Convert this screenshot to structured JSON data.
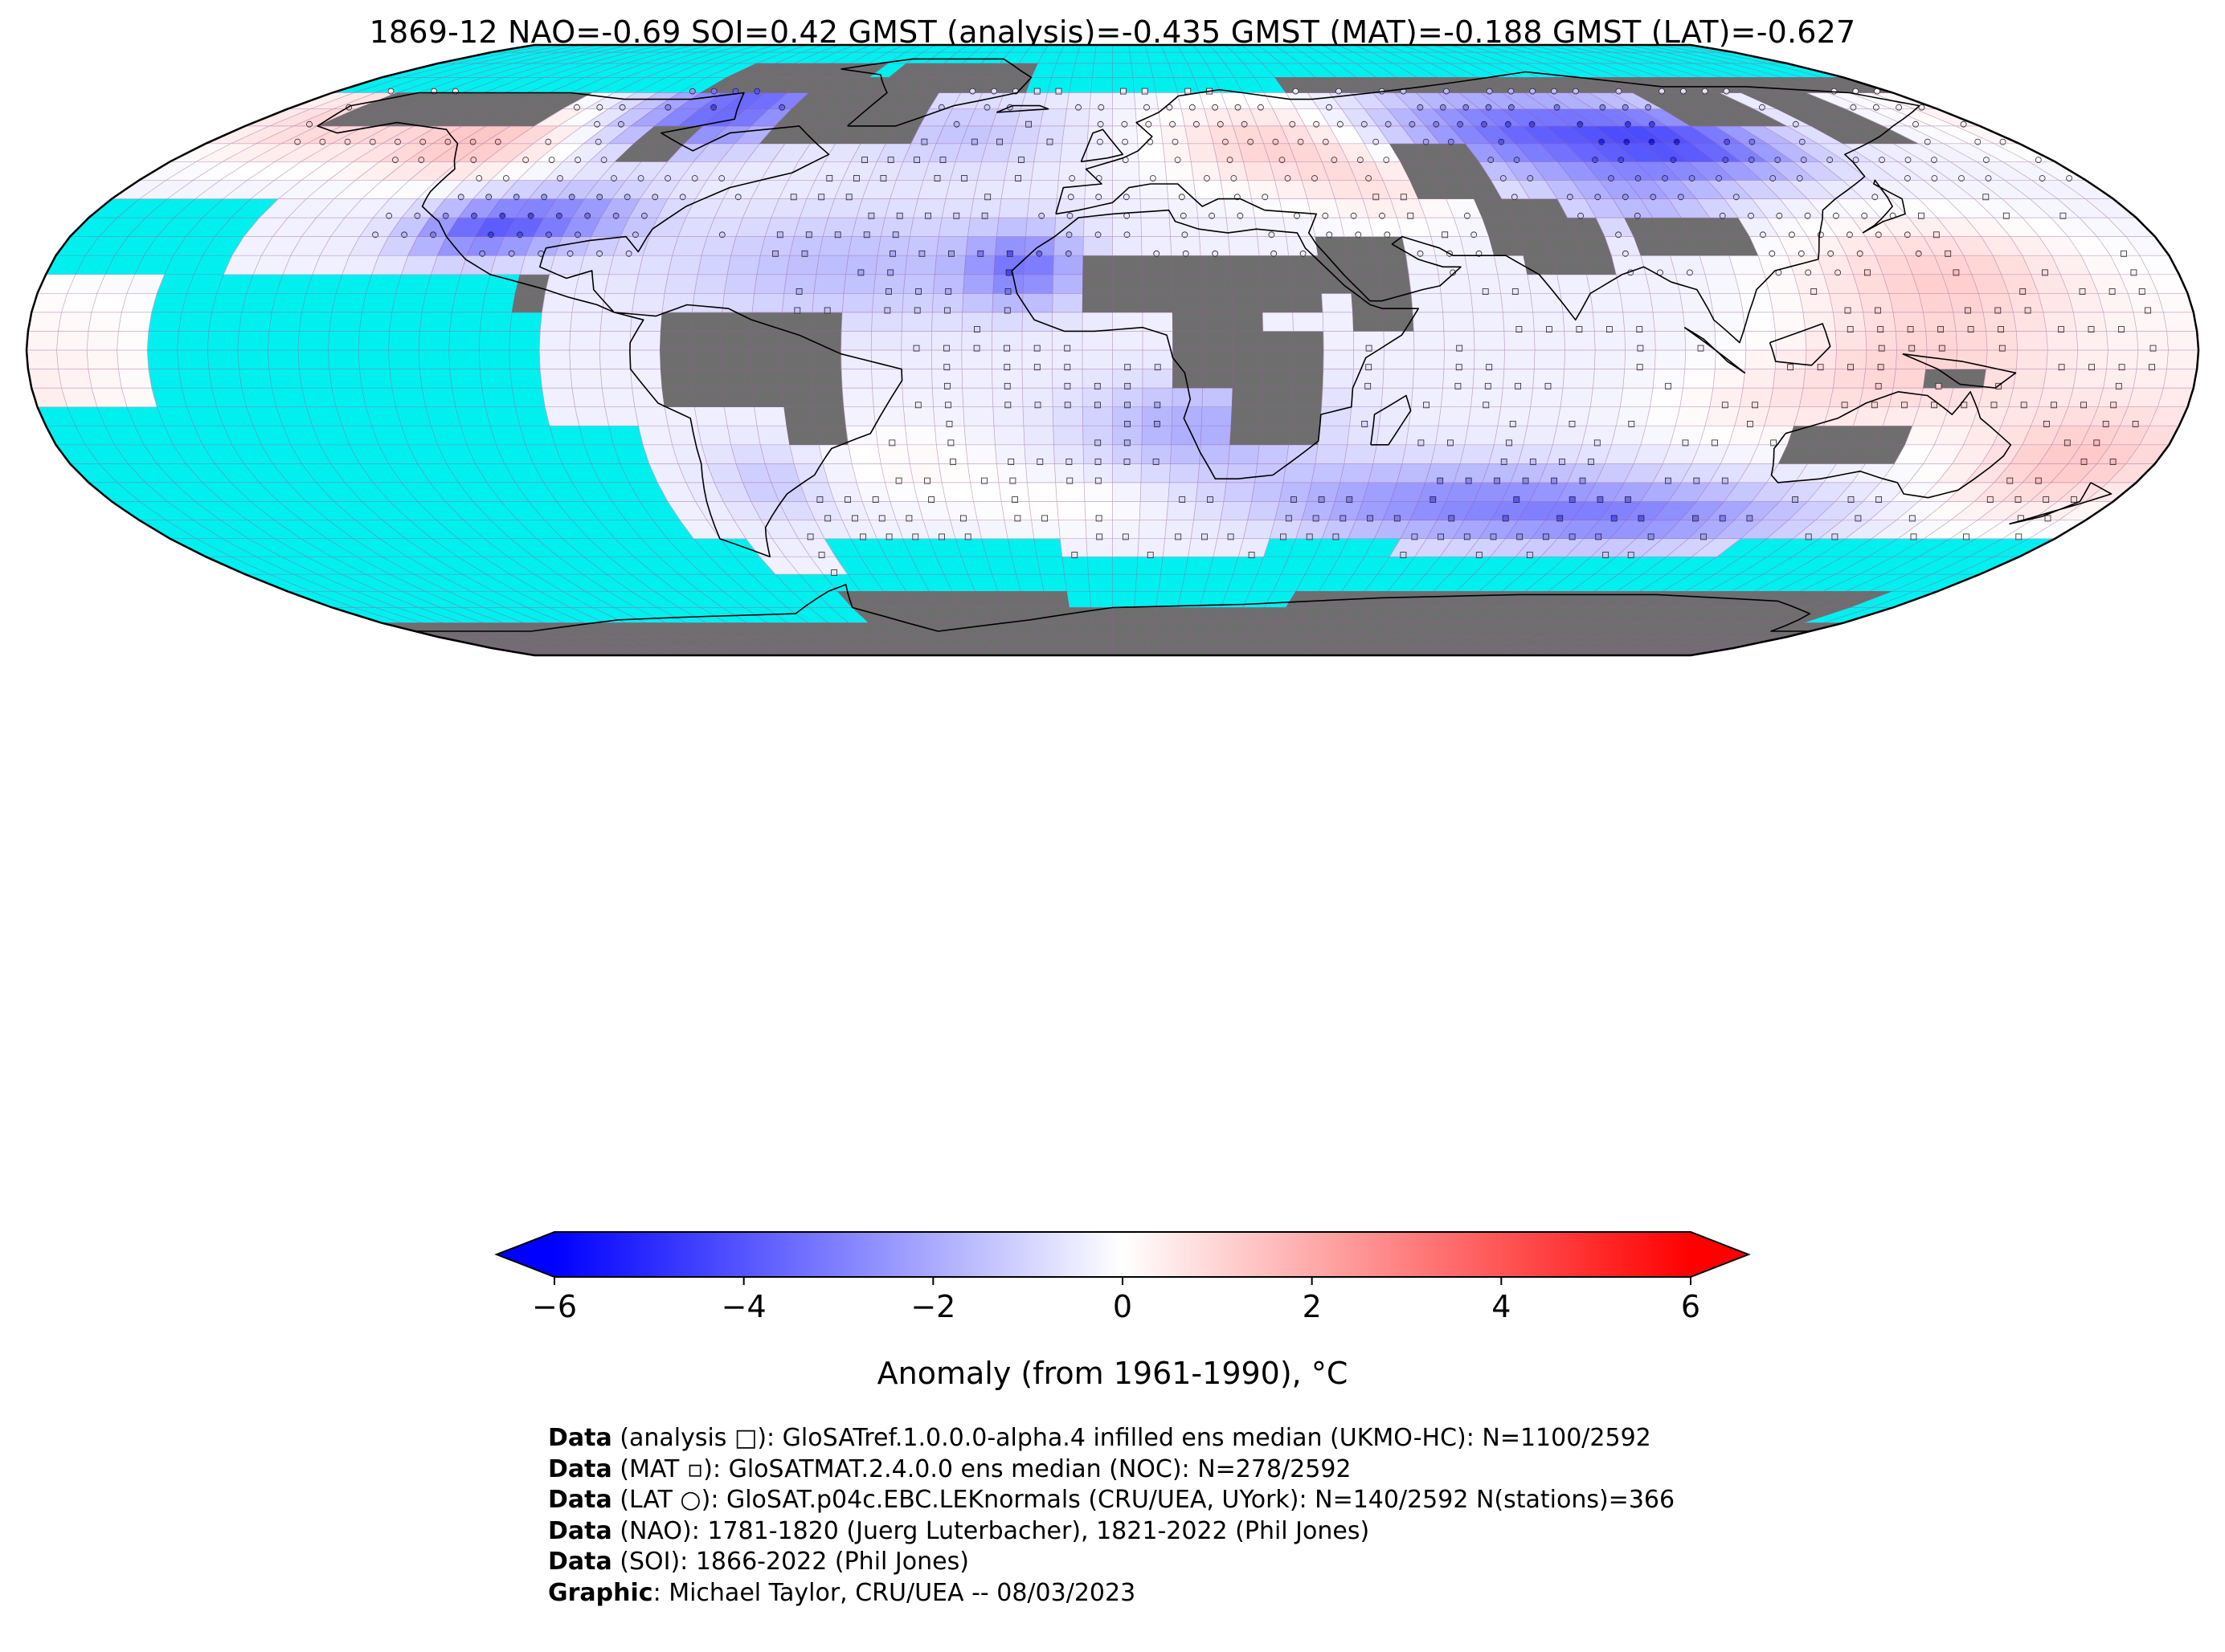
{
  "title": "1869-12 NAO=-0.69 SOI=0.42 GMST (analysis)=-0.435 GMST (MAT)=-0.188 GMST (LAT)=-0.627",
  "colorbar": {
    "label": "Anomaly (from 1961-1990), °C",
    "min": -6,
    "max": 6,
    "ticks": [
      "−6",
      "−4",
      "−2",
      "0",
      "2",
      "4",
      "6"
    ],
    "tick_values": [
      -6,
      -4,
      -2,
      0,
      2,
      4,
      6
    ],
    "extend": "both",
    "colormap": [
      "#0000ff",
      "#ffffff",
      "#ff0000"
    ]
  },
  "map": {
    "projection": "Robinson",
    "grid": "5° × 5°",
    "ocean_nodata_color": "#00f0f0",
    "land_nodata_color": "#6e6e6e",
    "gridline_color": "#9a5c9a",
    "coastline_color": "#000000"
  },
  "credits": [
    {
      "bold": "Data",
      "text": " (analysis □): GloSATref.1.0.0.0-alpha.4 infilled ens median (UKMO-HC): N=1100/2592"
    },
    {
      "bold": "Data",
      "text": " (MAT ▫): GloSATMAT.2.4.0.0 ens median (NOC): N=278/2592"
    },
    {
      "bold": "Data",
      "text": " (LAT ○): GloSAT.p04c.EBC.LEKnormals (CRU/UEA, UYork): N=140/2592 N(stations)=366"
    },
    {
      "bold": "Data",
      "text": " (NAO): 1781-1820 (Juerg Luterbacher), 1821-2022 (Phil Jones)"
    },
    {
      "bold": "Data",
      "text": " (SOI): 1866-2022 (Phil Jones)"
    },
    {
      "bold": "Graphic",
      "text": ": Michael Taylor, CRU/UEA -- 08/03/2023"
    }
  ]
}
